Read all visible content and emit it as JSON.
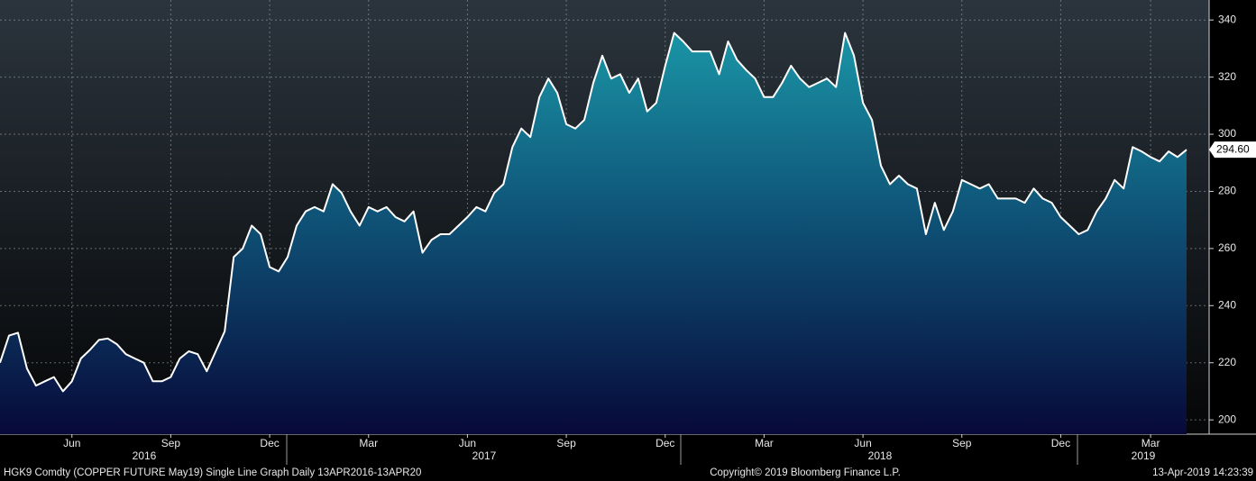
{
  "chart_data": {
    "type": "area",
    "color": "#ffffff",
    "grid": true,
    "ylim": [
      195,
      347
    ],
    "yticks": [
      200,
      220,
      240,
      260,
      280,
      300,
      320,
      340
    ],
    "categories": [
      null,
      null,
      null,
      null,
      null,
      null,
      null,
      null,
      "Jun",
      null,
      null,
      null,
      null,
      null,
      null,
      null,
      null,
      null,
      null,
      "Sep",
      null,
      null,
      null,
      null,
      null,
      null,
      null,
      null,
      null,
      null,
      "Dec",
      null,
      null,
      null,
      null,
      null,
      null,
      null,
      null,
      null,
      null,
      "Mar",
      null,
      null,
      null,
      null,
      null,
      null,
      null,
      null,
      null,
      null,
      "Jun",
      null,
      null,
      null,
      null,
      null,
      null,
      null,
      null,
      null,
      null,
      "Sep",
      null,
      null,
      null,
      null,
      null,
      null,
      null,
      null,
      null,
      null,
      "Dec",
      null,
      null,
      null,
      null,
      null,
      null,
      null,
      null,
      null,
      null,
      "Mar",
      null,
      null,
      null,
      null,
      null,
      null,
      null,
      null,
      null,
      null,
      "Jun",
      null,
      null,
      null,
      null,
      null,
      null,
      null,
      null,
      null,
      null,
      "Sep",
      null,
      null,
      null,
      null,
      null,
      null,
      null,
      null,
      null,
      null,
      "Dec",
      null,
      null,
      null,
      null,
      null,
      null,
      null,
      null,
      null,
      "Mar",
      null,
      null,
      null,
      null
    ],
    "values": [
      220,
      229.5,
      230.5,
      218,
      212,
      213.5,
      215,
      210,
      213.5,
      221.5,
      224.5,
      228,
      228.5,
      226.5,
      223,
      221.5,
      220,
      213.5,
      213.5,
      215,
      221.5,
      224,
      223,
      217,
      224,
      231,
      257,
      260,
      268,
      265,
      253.5,
      252,
      257,
      268,
      273,
      274.5,
      273,
      282.5,
      279.5,
      273,
      268,
      274.5,
      273,
      274.5,
      271,
      269.5,
      273,
      258.5,
      263,
      265,
      265,
      268,
      271,
      274.5,
      273,
      279.5,
      282.5,
      295.5,
      302,
      299,
      313,
      319.5,
      314.5,
      303.5,
      302,
      305,
      318,
      327.5,
      319.5,
      321,
      314.5,
      319.5,
      308,
      311,
      324,
      335.5,
      332.5,
      329,
      329,
      329,
      321,
      332.5,
      326,
      322.5,
      319.5,
      313,
      313,
      318,
      324,
      319.5,
      316.5,
      318,
      319.5,
      316.5,
      335.5,
      327.5,
      311,
      305,
      289,
      282.5,
      285.5,
      282.5,
      281,
      265,
      276,
      266.5,
      273,
      284,
      282.5,
      281,
      282.5,
      277.5,
      277.5,
      277.5,
      276,
      281,
      277.5,
      276,
      271,
      268,
      265,
      266.5,
      273,
      277.5,
      284,
      281,
      295.5,
      294,
      292,
      290.5,
      294,
      292,
      294.6
    ],
    "value_labels": [
      null,
      null,
      null,
      null,
      null,
      null,
      null,
      null,
      null,
      null,
      null,
      null,
      null,
      null,
      null,
      null,
      null,
      null,
      null,
      null,
      null,
      null,
      null,
      null,
      null,
      null,
      null,
      null,
      null,
      null,
      null,
      null,
      null,
      null,
      null,
      null,
      null,
      null,
      null,
      null,
      null,
      null,
      null,
      null,
      null,
      null,
      null,
      null,
      null,
      null,
      null,
      null,
      null,
      null,
      null,
      null,
      null,
      null,
      null,
      null,
      null,
      null,
      null,
      null,
      null,
      null,
      null,
      null,
      null,
      null,
      null,
      null,
      null,
      null,
      null,
      null,
      null,
      null,
      null,
      null,
      null,
      null,
      null,
      null,
      null,
      null,
      null,
      null,
      null,
      null,
      null,
      null,
      null,
      null,
      null,
      null,
      null,
      null,
      null,
      null,
      null,
      null,
      null,
      null,
      null,
      null,
      null,
      null,
      null,
      null,
      null,
      null,
      null,
      null,
      null,
      null,
      null,
      null,
      null,
      null,
      null,
      null,
      null,
      null,
      null,
      null,
      null,
      null,
      null,
      null,
      null,
      null,
      "294.60"
    ],
    "years": [
      "2016",
      "2017",
      "2018",
      "2019"
    ],
    "footer": {
      "left": "HGK9 Comdty (COPPER FUTURE    May19) Single Line Graph  Daily 13APR2016-13APR20",
      "center": "Copyright© 2019 Bloomberg Finance L.P.",
      "right": "13-Apr-2019 14:23:39"
    }
  }
}
